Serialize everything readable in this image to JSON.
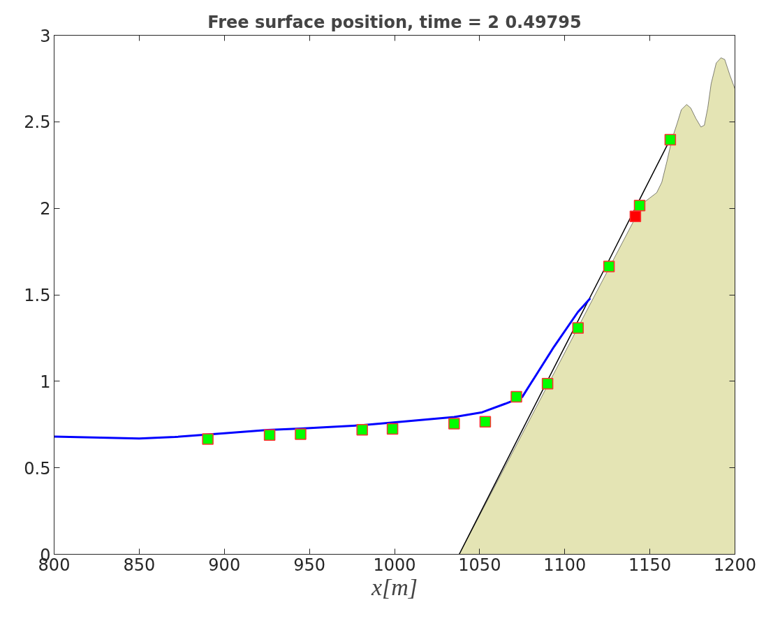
{
  "chart_data": {
    "type": "line",
    "title": "Free surface position, time = 2 0.49795",
    "xlabel": "x[m]",
    "xlim": [
      800,
      1200
    ],
    "ylim": [
      0,
      3
    ],
    "xticks": [
      800,
      850,
      900,
      950,
      1000,
      1050,
      1100,
      1150,
      1200
    ],
    "yticks": [
      0,
      0.5,
      1,
      1.5,
      2,
      2.5,
      3
    ],
    "grid": false,
    "series": [
      {
        "type": "area",
        "color": "#e4e4b4",
        "x": [
          1038,
          1146,
          1150,
          1154,
          1157,
          1160,
          1163,
          1166,
          1168.5,
          1171.6,
          1174,
          1177,
          1180,
          1182,
          1184,
          1186,
          1189,
          1191.8,
          1194,
          1197,
          1200
        ],
        "values": [
          0,
          2.03,
          2.06,
          2.09,
          2.15,
          2.27,
          2.4,
          2.49,
          2.57,
          2.6,
          2.58,
          2.52,
          2.47,
          2.48,
          2.58,
          2.72,
          2.84,
          2.87,
          2.86,
          2.77,
          2.69
        ]
      },
      {
        "type": "line",
        "color": "#000000",
        "x": [
          1038,
          1070,
          1100,
          1126,
          1146,
          1162
        ],
        "values": [
          0,
          0.62,
          1.2,
          1.7,
          2.09,
          2.4
        ]
      },
      {
        "color": "#0000ff",
        "x": [
          800,
          850,
          871,
          900,
          925.5,
          944.8,
          980.5,
          999.4,
          1035,
          1051.5,
          1065,
          1075,
          1093.7,
          1107.7,
          1115
        ],
        "values": [
          0.68,
          0.669,
          0.678,
          0.7,
          0.719,
          0.727,
          0.746,
          0.762,
          0.793,
          0.821,
          0.87,
          0.909,
          1.2,
          1.4,
          1.48
        ]
      },
      {
        "type": "scatter",
        "marker": "square",
        "color": "#00ff00",
        "x": [
          890.3,
          926.6,
          944.8,
          981,
          998.8,
          1035,
          1053.3,
          1071.6,
          1089.9,
          1107.8,
          1126,
          1144,
          1162
        ],
        "values": [
          0.666,
          0.689,
          0.694,
          0.72,
          0.725,
          0.755,
          0.766,
          0.91,
          0.986,
          1.308,
          1.664,
          2.016,
          2.396
        ]
      },
      {
        "type": "scatter",
        "marker": "square",
        "color": "#ff0000",
        "x": [
          1141.5
        ],
        "values": [
          1.953
        ]
      }
    ]
  }
}
